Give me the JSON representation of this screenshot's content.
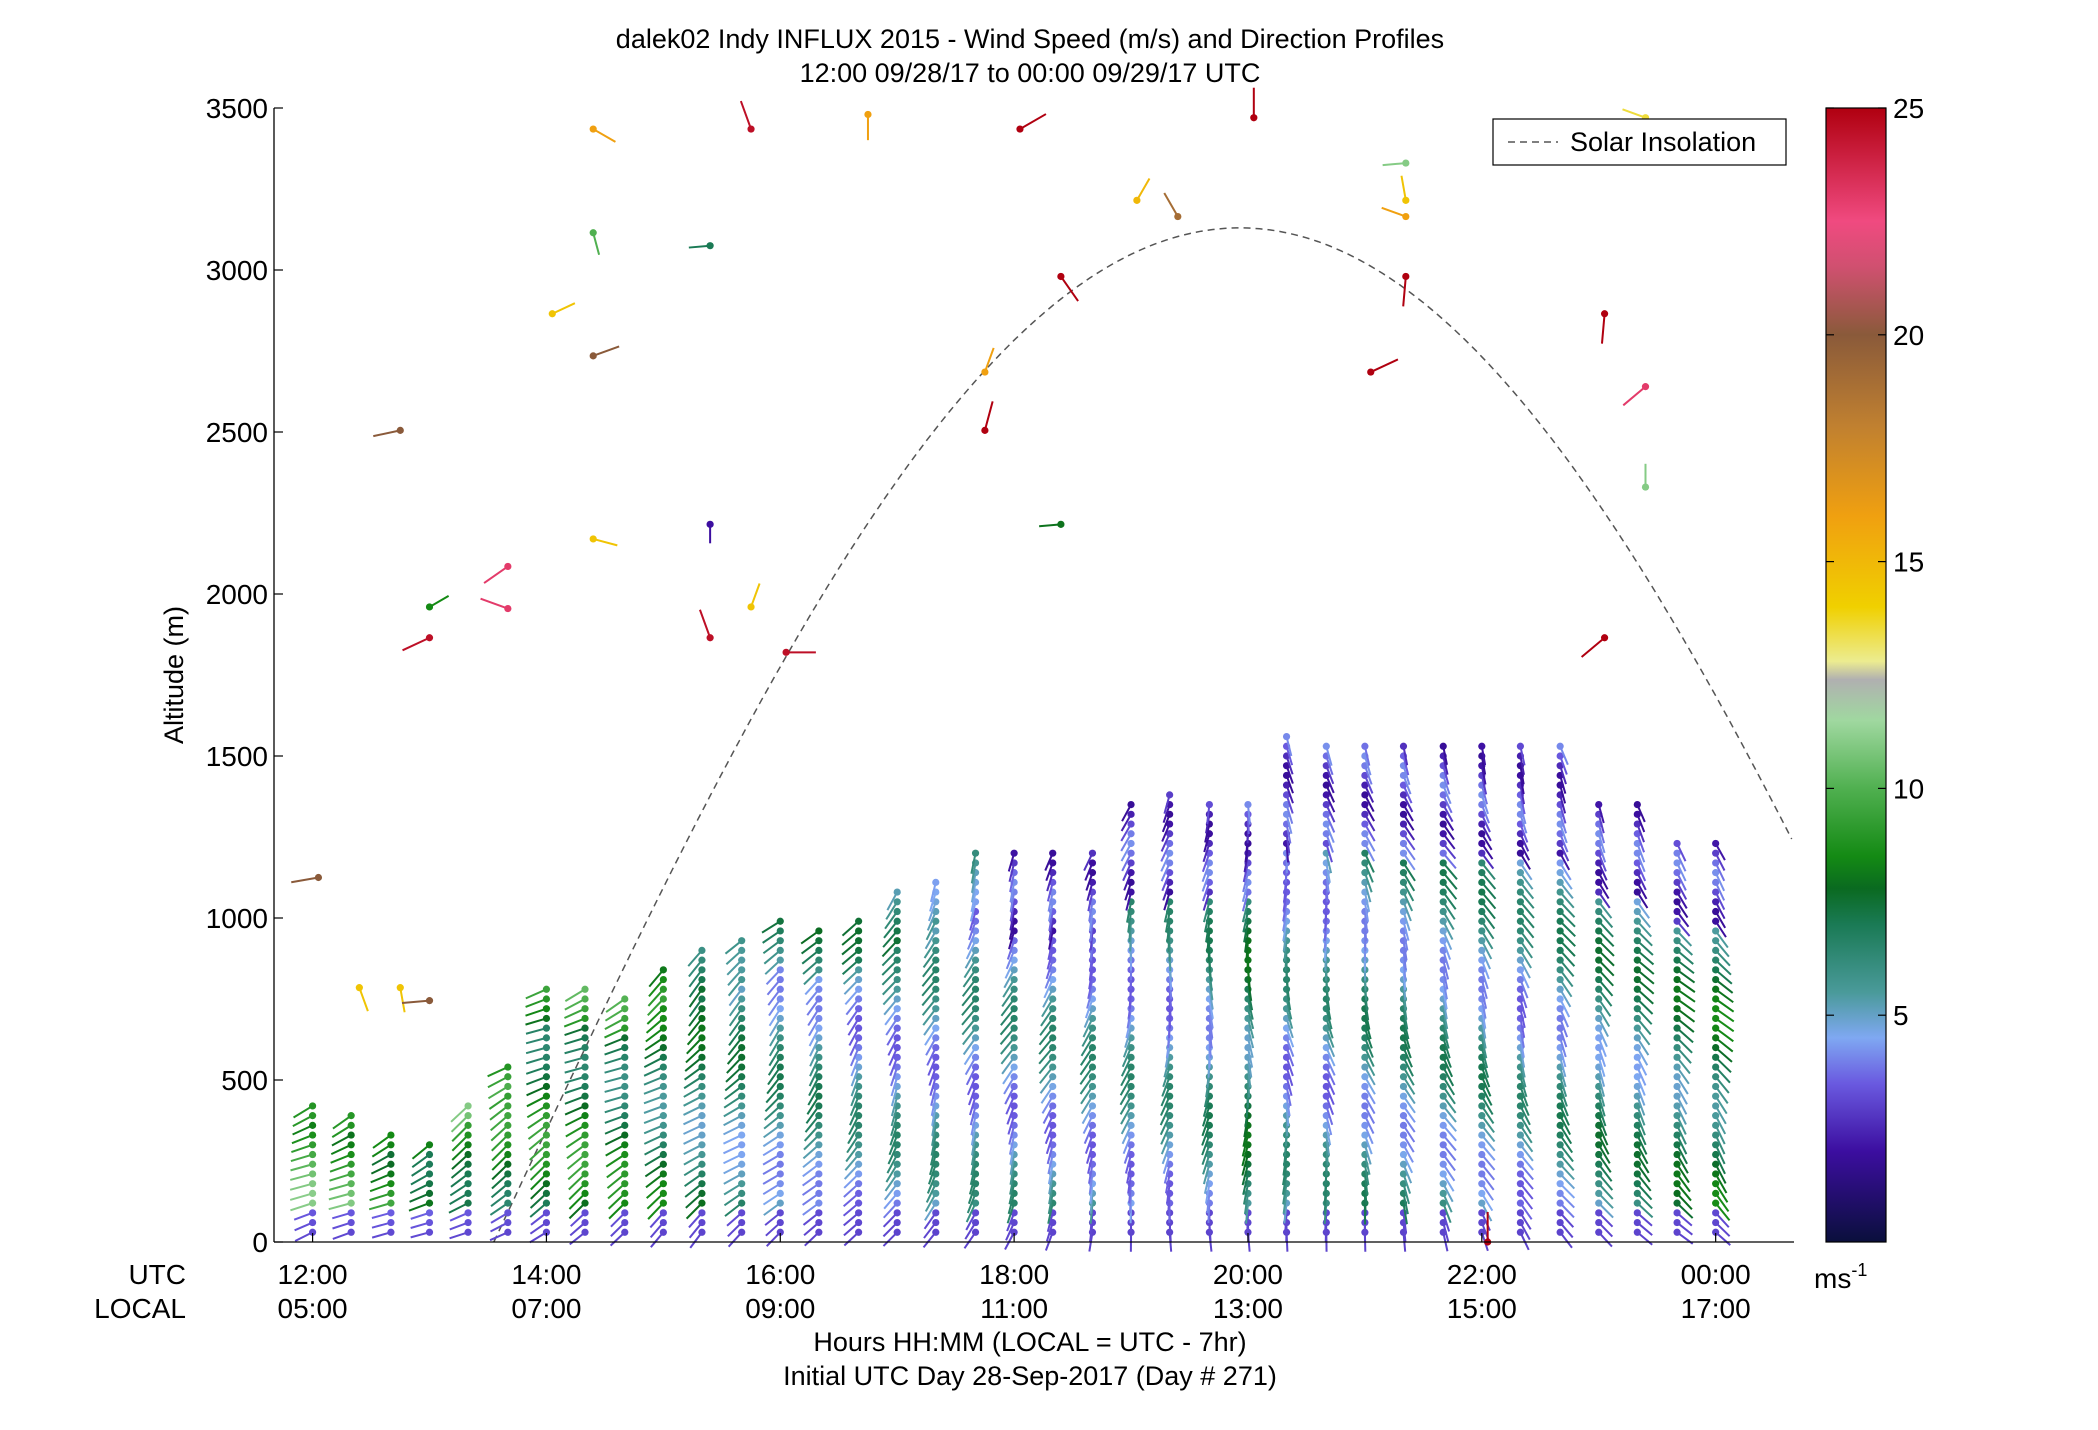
{
  "chart_data": {
    "type": "wind-barb-profile",
    "title": "dalek02 Indy INFLUX 2015 - Wind Speed (m/s) and Direction Profiles",
    "subtitle": "12:00 09/28/17 to 00:00 09/29/17  UTC",
    "ylabel": "Altitude (m)",
    "xlabel": "Hours HH:MM  (LOCAL = UTC - 7hr)",
    "xlabel2": "Initial UTC Day 28-Sep-2017 (Day # 271)",
    "x_row_labels": [
      "UTC",
      "LOCAL"
    ],
    "ylim": [
      0,
      3500
    ],
    "yticks": [
      0,
      500,
      1000,
      1500,
      2000,
      2500,
      3000,
      3500
    ],
    "xlim_hours": [
      11.67,
      24.67
    ],
    "xticks": [
      {
        "hour": 12,
        "utc": "12:00",
        "local": "05:00"
      },
      {
        "hour": 14,
        "utc": "14:00",
        "local": "07:00"
      },
      {
        "hour": 16,
        "utc": "16:00",
        "local": "09:00"
      },
      {
        "hour": 18,
        "utc": "18:00",
        "local": "11:00"
      },
      {
        "hour": 20,
        "utc": "20:00",
        "local": "13:00"
      },
      {
        "hour": 22,
        "utc": "22:00",
        "local": "15:00"
      },
      {
        "hour": 24,
        "utc": "00:00",
        "local": "17:00"
      }
    ],
    "legend": {
      "label": "Solar Insolation",
      "position": "top-right",
      "style": "dashed",
      "color": "#555555"
    },
    "solar_insolation": {
      "peak_hour": 19.93,
      "peak_altitude": 3130,
      "zero_hour": 13.55,
      "end_hour": 24.67,
      "end_altitude": 1220
    },
    "colorbar": {
      "range": [
        0,
        25
      ],
      "ticks": [
        5,
        10,
        15,
        20,
        25
      ],
      "unit": "ms",
      "unit_sup": "-1",
      "stops": [
        {
          "v": 0,
          "c": "#0a0f3c"
        },
        {
          "v": 2,
          "c": "#3c0ea0"
        },
        {
          "v": 3.5,
          "c": "#6a5ae0"
        },
        {
          "v": 4.5,
          "c": "#7fa8f2"
        },
        {
          "v": 5.5,
          "c": "#4a9a9a"
        },
        {
          "v": 7,
          "c": "#1a7a55"
        },
        {
          "v": 7.8,
          "c": "#0a6a20"
        },
        {
          "v": 8.5,
          "c": "#148a14"
        },
        {
          "v": 10,
          "c": "#50b050"
        },
        {
          "v": 11.5,
          "c": "#a0d8a0"
        },
        {
          "v": 12.4,
          "c": "#b0b0b0"
        },
        {
          "v": 12.8,
          "c": "#ecec90"
        },
        {
          "v": 14,
          "c": "#f0d000"
        },
        {
          "v": 16,
          "c": "#f0a010"
        },
        {
          "v": 18,
          "c": "#c08030"
        },
        {
          "v": 20,
          "c": "#8a5a3a"
        },
        {
          "v": 21.5,
          "c": "#d05070"
        },
        {
          "v": 22.5,
          "c": "#f04a80"
        },
        {
          "v": 25,
          "c": "#b00010"
        }
      ]
    },
    "profiles": {
      "times_hours": [
        12.0,
        12.33,
        12.67,
        13.0,
        13.33,
        13.67,
        14.0,
        14.33,
        14.67,
        15.0,
        15.33,
        15.67,
        16.0,
        16.33,
        16.67,
        17.0,
        17.33,
        17.67,
        18.0,
        18.33,
        18.67,
        19.0,
        19.33,
        19.67,
        20.0,
        20.33,
        20.67,
        21.0,
        21.33,
        21.67,
        22.0,
        22.33,
        22.67,
        23.0,
        23.33,
        23.67,
        24.0
      ],
      "top_altitudes": [
        430,
        400,
        340,
        320,
        430,
        560,
        780,
        780,
        760,
        860,
        900,
        940,
        1000,
        960,
        1000,
        1090,
        1130,
        1210,
        1210,
        1210,
        1210,
        1370,
        1380,
        1360,
        1370,
        1570,
        1540,
        1540,
        1530,
        1530,
        1530,
        1530,
        1530,
        1370,
        1360,
        1240,
        1250
      ],
      "dominant_speed": [
        9.5,
        9.5,
        9.0,
        8.5,
        8.5,
        8.0,
        8.0,
        8.0,
        7.5,
        7.0,
        6.5,
        6.0,
        5.5,
        5.5,
        5.0,
        5.0,
        5.0,
        5.0,
        5.0,
        5.0,
        5.0,
        5.0,
        5.0,
        5.5,
        6.5,
        5.0,
        5.0,
        5.5,
        5.5,
        5.5,
        5.5,
        5.0,
        5.5,
        6.0,
        6.0,
        6.5,
        7.0
      ],
      "direction_deg": [
        240,
        240,
        240,
        240,
        240,
        240,
        240,
        240,
        240,
        235,
        230,
        230,
        225,
        220,
        215,
        210,
        205,
        205,
        205,
        205,
        200,
        195,
        190,
        185,
        180,
        175,
        170,
        165,
        160,
        155,
        155,
        155,
        150,
        150,
        145,
        140,
        140
      ],
      "spacing_m": 30
    },
    "sparse_observations": [
      {
        "hour": 12.05,
        "alt": 1125,
        "speed": 20,
        "dir": 260
      },
      {
        "hour": 12.4,
        "alt": 785,
        "speed": 14.5,
        "dir": 160
      },
      {
        "hour": 12.75,
        "alt": 2505,
        "speed": 20,
        "dir": 258
      },
      {
        "hour": 12.75,
        "alt": 785,
        "speed": 14.5,
        "dir": 170
      },
      {
        "hour": 13.0,
        "alt": 745,
        "speed": 20,
        "dir": 265
      },
      {
        "hour": 13.0,
        "alt": 1865,
        "speed": 24.5,
        "dir": 245
      },
      {
        "hour": 13.0,
        "alt": 1960,
        "speed": 8.5,
        "dir": 60
      },
      {
        "hour": 13.67,
        "alt": 2085,
        "speed": 23,
        "dir": 235
      },
      {
        "hour": 13.67,
        "alt": 1955,
        "speed": 23,
        "dir": 290
      },
      {
        "hour": 14.05,
        "alt": 2865,
        "speed": 14.5,
        "dir": 65
      },
      {
        "hour": 14.4,
        "alt": 3435,
        "speed": 16,
        "dir": 120
      },
      {
        "hour": 14.4,
        "alt": 3115,
        "speed": 10,
        "dir": 165
      },
      {
        "hour": 14.4,
        "alt": 2735,
        "speed": 20,
        "dir": 70
      },
      {
        "hour": 14.4,
        "alt": 2170,
        "speed": 14.5,
        "dir": 105
      },
      {
        "hour": 15.4,
        "alt": 3075,
        "speed": 7,
        "dir": 265
      },
      {
        "hour": 15.4,
        "alt": 2215,
        "speed": 2,
        "dir": 180
      },
      {
        "hour": 15.4,
        "alt": 1865,
        "speed": 24.5,
        "dir": 340
      },
      {
        "hour": 15.75,
        "alt": 3435,
        "speed": 24.5,
        "dir": 340
      },
      {
        "hour": 15.75,
        "alt": 1960,
        "speed": 14.5,
        "dir": 20
      },
      {
        "hour": 16.05,
        "alt": 1820,
        "speed": 24.5,
        "dir": 90
      },
      {
        "hour": 16.75,
        "alt": 3480,
        "speed": 16,
        "dir": 180
      },
      {
        "hour": 17.75,
        "alt": 2685,
        "speed": 16,
        "dir": 20
      },
      {
        "hour": 17.75,
        "alt": 2505,
        "speed": 25,
        "dir": 15
      },
      {
        "hour": 18.05,
        "alt": 3435,
        "speed": 25,
        "dir": 60
      },
      {
        "hour": 18.4,
        "alt": 2980,
        "speed": 25,
        "dir": 145
      },
      {
        "hour": 18.4,
        "alt": 2215,
        "speed": 8,
        "dir": 265
      },
      {
        "hour": 19.05,
        "alt": 3215,
        "speed": 15,
        "dir": 30
      },
      {
        "hour": 19.4,
        "alt": 3165,
        "speed": 19,
        "dir": 330
      },
      {
        "hour": 20.05,
        "alt": 3470,
        "speed": 25,
        "dir": 0
      },
      {
        "hour": 21.05,
        "alt": 2685,
        "speed": 25,
        "dir": 65
      },
      {
        "hour": 21.35,
        "alt": 3330,
        "speed": 11,
        "dir": 265
      },
      {
        "hour": 21.35,
        "alt": 3215,
        "speed": 14.5,
        "dir": 350
      },
      {
        "hour": 21.35,
        "alt": 3165,
        "speed": 16,
        "dir": 290
      },
      {
        "hour": 21.35,
        "alt": 2980,
        "speed": 25,
        "dir": 185
      },
      {
        "hour": 22.05,
        "alt": 0,
        "speed": 25,
        "dir": 0
      },
      {
        "hour": 23.05,
        "alt": 2865,
        "speed": 25,
        "dir": 185
      },
      {
        "hour": 23.05,
        "alt": 1865,
        "speed": 25,
        "dir": 230
      },
      {
        "hour": 23.4,
        "alt": 3470,
        "speed": 13.5,
        "dir": 290
      },
      {
        "hour": 23.4,
        "alt": 2640,
        "speed": 23,
        "dir": 230
      },
      {
        "hour": 23.4,
        "alt": 2330,
        "speed": 11,
        "dir": 0
      }
    ]
  }
}
